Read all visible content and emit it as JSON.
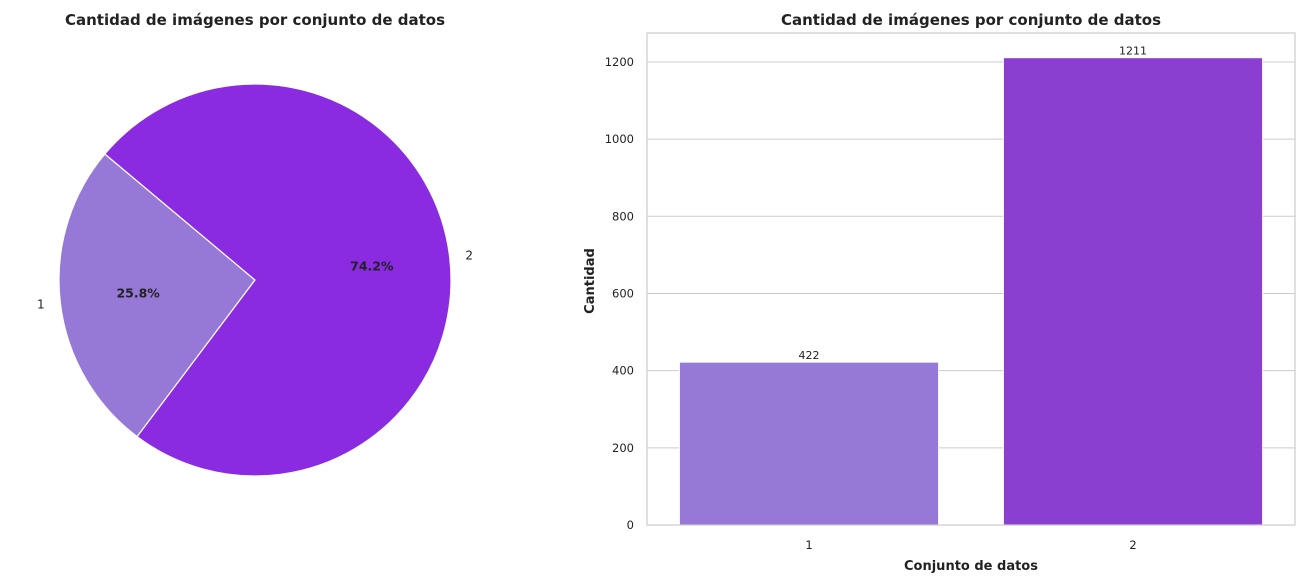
{
  "colors": {
    "series_1": "#9678D7",
    "series_2": "#8A2BE2",
    "bar_2": "#8A3FD0"
  },
  "chart_data": [
    {
      "type": "pie",
      "title": "Cantidad de imágenes por conjunto de datos",
      "categories": [
        "1",
        "2"
      ],
      "values": [
        422,
        1211
      ],
      "percent_labels": [
        "25.8%",
        "74.2%"
      ]
    },
    {
      "type": "bar",
      "title": "Cantidad de imágenes por conjunto de datos",
      "categories": [
        "1",
        "2"
      ],
      "values": [
        422,
        1211
      ],
      "data_labels": [
        "422",
        "1211"
      ],
      "xlabel": "Conjunto de datos",
      "ylabel": "Cantidad",
      "ylim": [
        0,
        1275
      ],
      "yticks": [
        0,
        200,
        400,
        600,
        800,
        1000,
        1200
      ],
      "grid": true
    }
  ]
}
